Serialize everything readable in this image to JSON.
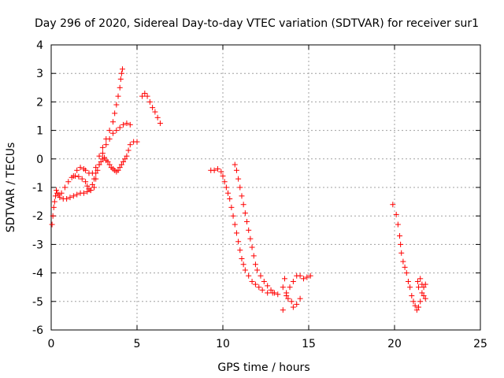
{
  "chart_data": {
    "type": "scatter",
    "title": "Day 296 of 2020, Sidereal Day-to-day VTEC variation (SDTVAR) for receiver sur1",
    "xlabel": "GPS time / hours",
    "ylabel": "SDTVAR / TECUs",
    "xlim": [
      0,
      25
    ],
    "ylim": [
      -6,
      4
    ],
    "xticks": [
      0,
      5,
      10,
      15,
      20,
      25
    ],
    "yticks": [
      -6,
      -5,
      -4,
      -3,
      -2,
      -1,
      0,
      1,
      2,
      3,
      4
    ],
    "xtick_labels": [
      "0",
      "5",
      "10",
      "15",
      "20",
      "25"
    ],
    "ytick_labels": [
      "-6",
      "-5",
      "-4",
      "-3",
      "-2",
      "-1",
      "0",
      "1",
      "2",
      "3",
      "4"
    ],
    "grid": true,
    "marker": "+",
    "color": "#ff0000",
    "series": [
      {
        "name": "sur1 SDTVAR",
        "points": [
          [
            0.05,
            -2.3
          ],
          [
            0.1,
            -2.0
          ],
          [
            0.15,
            -1.7
          ],
          [
            0.2,
            -1.5
          ],
          [
            0.25,
            -1.3
          ],
          [
            0.35,
            -1.2
          ],
          [
            0.5,
            -1.35
          ],
          [
            0.7,
            -1.4
          ],
          [
            0.9,
            -1.4
          ],
          [
            1.1,
            -1.35
          ],
          [
            1.3,
            -1.3
          ],
          [
            1.5,
            -1.25
          ],
          [
            1.7,
            -1.2
          ],
          [
            1.9,
            -1.2
          ],
          [
            2.1,
            -1.15
          ],
          [
            2.3,
            -1.1
          ],
          [
            2.5,
            -1.0
          ],
          [
            2.6,
            -0.7
          ],
          [
            2.7,
            -0.4
          ],
          [
            2.8,
            -0.2
          ],
          [
            2.9,
            -0.1
          ],
          [
            3.0,
            0.0
          ],
          [
            3.1,
            0.05
          ],
          [
            3.2,
            -0.05
          ],
          [
            3.3,
            -0.1
          ],
          [
            3.4,
            -0.2
          ],
          [
            3.5,
            -0.3
          ],
          [
            3.6,
            -0.35
          ],
          [
            3.7,
            -0.4
          ],
          [
            3.8,
            -0.45
          ],
          [
            3.9,
            -0.4
          ],
          [
            4.0,
            -0.3
          ],
          [
            4.1,
            -0.2
          ],
          [
            4.2,
            -0.1
          ],
          [
            4.3,
            0.0
          ],
          [
            4.4,
            0.1
          ],
          [
            4.5,
            0.3
          ],
          [
            4.6,
            0.5
          ],
          [
            4.8,
            0.6
          ],
          [
            5.0,
            0.6
          ],
          [
            0.3,
            -1.1
          ],
          [
            0.45,
            -1.25
          ],
          [
            0.6,
            -1.2
          ],
          [
            0.8,
            -1.0
          ],
          [
            1.0,
            -0.8
          ],
          [
            1.2,
            -0.65
          ],
          [
            1.4,
            -0.6
          ],
          [
            1.6,
            -0.62
          ],
          [
            1.8,
            -0.7
          ],
          [
            2.0,
            -0.8
          ],
          [
            2.1,
            -0.95
          ],
          [
            2.2,
            -1.05
          ],
          [
            2.3,
            -1.1
          ],
          [
            2.4,
            -0.9
          ],
          [
            2.5,
            -0.7
          ],
          [
            2.6,
            -0.5
          ],
          [
            2.8,
            -0.2
          ],
          [
            3.0,
            0.2
          ],
          [
            3.2,
            0.5
          ],
          [
            3.4,
            0.7
          ],
          [
            3.6,
            0.9
          ],
          [
            3.8,
            1.0
          ],
          [
            4.0,
            1.1
          ],
          [
            4.2,
            1.2
          ],
          [
            4.4,
            1.25
          ],
          [
            4.6,
            1.2
          ],
          [
            1.3,
            -0.6
          ],
          [
            1.5,
            -0.4
          ],
          [
            1.7,
            -0.3
          ],
          [
            1.9,
            -0.35
          ],
          [
            2.0,
            -0.4
          ],
          [
            2.2,
            -0.5
          ],
          [
            2.4,
            -0.5
          ],
          [
            2.6,
            -0.3
          ],
          [
            2.8,
            0.1
          ],
          [
            3.0,
            0.4
          ],
          [
            3.2,
            0.7
          ],
          [
            3.4,
            1.0
          ],
          [
            3.6,
            1.3
          ],
          [
            3.7,
            1.6
          ],
          [
            3.8,
            1.9
          ],
          [
            3.9,
            2.2
          ],
          [
            4.0,
            2.5
          ],
          [
            4.05,
            2.8
          ],
          [
            4.1,
            3.0
          ],
          [
            4.15,
            3.15
          ],
          [
            5.3,
            2.2
          ],
          [
            5.45,
            2.3
          ],
          [
            5.6,
            2.2
          ],
          [
            5.75,
            2.0
          ],
          [
            5.9,
            1.8
          ],
          [
            6.05,
            1.65
          ],
          [
            6.2,
            1.45
          ],
          [
            6.35,
            1.25
          ],
          [
            9.3,
            -0.4
          ],
          [
            9.5,
            -0.4
          ],
          [
            9.7,
            -0.35
          ],
          [
            9.9,
            -0.45
          ],
          [
            10.0,
            -0.6
          ],
          [
            10.1,
            -0.8
          ],
          [
            10.2,
            -1.0
          ],
          [
            10.3,
            -1.2
          ],
          [
            10.4,
            -1.4
          ],
          [
            10.5,
            -1.7
          ],
          [
            10.6,
            -2.0
          ],
          [
            10.7,
            -2.3
          ],
          [
            10.8,
            -2.6
          ],
          [
            10.9,
            -2.9
          ],
          [
            11.0,
            -3.2
          ],
          [
            11.1,
            -3.5
          ],
          [
            11.2,
            -3.7
          ],
          [
            11.3,
            -3.9
          ],
          [
            11.5,
            -4.1
          ],
          [
            11.7,
            -4.3
          ],
          [
            11.9,
            -4.4
          ],
          [
            12.1,
            -4.5
          ],
          [
            12.3,
            -4.6
          ],
          [
            12.6,
            -4.7
          ],
          [
            12.9,
            -4.7
          ],
          [
            10.7,
            -0.2
          ],
          [
            10.8,
            -0.4
          ],
          [
            10.9,
            -0.7
          ],
          [
            11.0,
            -1.0
          ],
          [
            11.1,
            -1.3
          ],
          [
            11.2,
            -1.6
          ],
          [
            11.3,
            -1.9
          ],
          [
            11.4,
            -2.2
          ],
          [
            11.5,
            -2.5
          ],
          [
            11.6,
            -2.8
          ],
          [
            11.7,
            -3.1
          ],
          [
            11.8,
            -3.4
          ],
          [
            11.9,
            -3.7
          ],
          [
            12.0,
            -3.9
          ],
          [
            12.2,
            -4.1
          ],
          [
            12.4,
            -4.3
          ],
          [
            12.6,
            -4.45
          ],
          [
            12.8,
            -4.6
          ],
          [
            13.0,
            -4.7
          ],
          [
            13.2,
            -4.75
          ],
          [
            13.5,
            -4.5
          ],
          [
            13.6,
            -4.2
          ],
          [
            13.7,
            -4.7
          ],
          [
            13.8,
            -4.9
          ],
          [
            14.0,
            -5.0
          ],
          [
            14.1,
            -5.2
          ],
          [
            14.3,
            -5.1
          ],
          [
            14.5,
            -4.9
          ],
          [
            13.5,
            -5.3
          ],
          [
            13.7,
            -4.8
          ],
          [
            13.9,
            -4.5
          ],
          [
            14.1,
            -4.3
          ],
          [
            14.3,
            -4.1
          ],
          [
            14.5,
            -4.1
          ],
          [
            14.7,
            -4.2
          ],
          [
            14.9,
            -4.15
          ],
          [
            15.1,
            -4.1
          ],
          [
            19.9,
            -1.6
          ],
          [
            20.1,
            -1.95
          ],
          [
            20.2,
            -2.3
          ],
          [
            20.3,
            -2.7
          ],
          [
            20.35,
            -3.0
          ],
          [
            20.4,
            -3.3
          ],
          [
            20.5,
            -3.6
          ],
          [
            20.6,
            -3.8
          ],
          [
            20.7,
            -4.0
          ],
          [
            20.8,
            -4.3
          ],
          [
            20.9,
            -4.5
          ],
          [
            21.0,
            -4.8
          ],
          [
            21.1,
            -5.0
          ],
          [
            21.2,
            -5.15
          ],
          [
            21.3,
            -5.3
          ],
          [
            21.4,
            -5.2
          ],
          [
            21.5,
            -5.0
          ],
          [
            21.6,
            -4.7
          ],
          [
            21.7,
            -4.5
          ],
          [
            21.8,
            -4.4
          ],
          [
            21.5,
            -4.2
          ],
          [
            21.6,
            -4.4
          ],
          [
            21.7,
            -4.8
          ],
          [
            21.8,
            -4.9
          ],
          [
            21.4,
            -4.5
          ],
          [
            21.35,
            -4.3
          ]
        ]
      }
    ]
  }
}
